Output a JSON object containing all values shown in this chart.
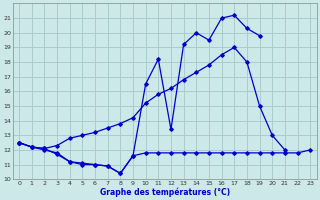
{
  "title": "Graphe des températures (°C)",
  "bg_color": "#cce8e8",
  "grid_color": "#aacccc",
  "line_color": "#0000cc",
  "xlim": [
    -0.5,
    23.5
  ],
  "ylim": [
    10,
    22
  ],
  "xticks": [
    0,
    1,
    2,
    3,
    4,
    5,
    6,
    7,
    8,
    9,
    10,
    11,
    12,
    13,
    14,
    15,
    16,
    17,
    18,
    19,
    20,
    21,
    22,
    23
  ],
  "yticks": [
    10,
    11,
    12,
    13,
    14,
    15,
    16,
    17,
    18,
    19,
    20,
    21
  ],
  "series_min_x": [
    0,
    1,
    2,
    3,
    4,
    5,
    6,
    7,
    8,
    9,
    10,
    11,
    12,
    13,
    14,
    15,
    16,
    17,
    18,
    19,
    20,
    21,
    22,
    23
  ],
  "series_min_y": [
    12.5,
    12.2,
    12.1,
    11.7,
    11.2,
    11.1,
    11.0,
    10.9,
    10.4,
    11.6,
    11.8,
    11.8,
    11.8,
    11.8,
    11.8,
    11.8,
    11.8,
    11.8,
    11.8,
    11.8,
    11.8,
    11.8,
    11.8,
    12.0
  ],
  "series_avg_x": [
    0,
    1,
    2,
    3,
    4,
    5,
    6,
    7,
    8,
    9,
    10,
    11,
    12,
    13,
    14,
    15,
    16,
    17,
    18,
    19,
    20,
    21,
    22,
    23
  ],
  "series_avg_y": [
    12.5,
    12.2,
    12.1,
    12.3,
    12.8,
    13.0,
    13.2,
    13.5,
    13.8,
    14.2,
    15.2,
    15.8,
    16.2,
    16.8,
    17.3,
    17.8,
    18.5,
    19.0,
    18.0,
    15.0,
    13.0,
    12.0,
    null,
    null
  ],
  "series_max_x": [
    0,
    1,
    2,
    3,
    4,
    5,
    6,
    7,
    8,
    9,
    10,
    11,
    12,
    13,
    14,
    15,
    16,
    17,
    18,
    19,
    20,
    21,
    22,
    23
  ],
  "series_max_y": [
    12.5,
    12.2,
    12.0,
    11.8,
    11.2,
    11.0,
    11.0,
    10.9,
    10.4,
    11.6,
    16.5,
    18.2,
    13.4,
    19.2,
    20.0,
    19.5,
    21.0,
    21.2,
    20.3,
    19.8,
    null,
    null,
    null,
    null
  ]
}
